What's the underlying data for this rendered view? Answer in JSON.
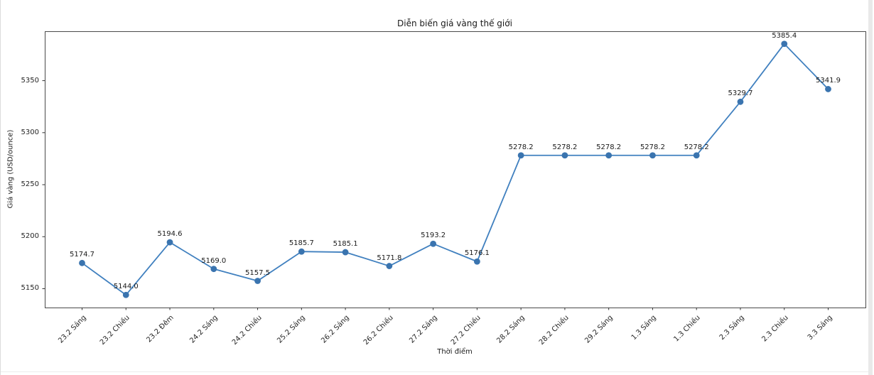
{
  "figure": {
    "title": "Diễn biến giá vàng thế giới",
    "xlabel": "Thời điểm",
    "ylabel": "Giá vàng (USD/ounce)"
  },
  "chart_data": {
    "type": "line",
    "title": "Diễn biến giá vàng thế giới",
    "xlabel": "Thời điểm",
    "ylabel": "Giá vàng (USD/ounce)",
    "categories": [
      "23.2 Sáng",
      "23.2 Chiều",
      "23.2 Đêm",
      "24.2 Sáng",
      "24.2 Chiều",
      "25.2 Sáng",
      "26.2 Sáng",
      "26.2 Chiều",
      "27.2 Sáng",
      "27.2 Chiều",
      "28.2 Sáng",
      "28.2 Chiều",
      "29.2 Sáng",
      "1.3 Sáng",
      "1.3 Chiều",
      "2.3 Sáng",
      "2.3 Chiều",
      "3.3 Sáng"
    ],
    "values": [
      5174.7,
      5144.0,
      5194.6,
      5169.0,
      5157.5,
      5185.7,
      5185.1,
      5171.8,
      5193.2,
      5176.1,
      5278.2,
      5278.2,
      5278.2,
      5278.2,
      5278.2,
      5329.7,
      5385.4,
      5341.9
    ],
    "point_labels": [
      "5174.7",
      "5144.0",
      "5194.6",
      "5169.0",
      "5157.5",
      "5185.7",
      "5185.1",
      "5171.8",
      "5193.2",
      "5176.1",
      "5278.2",
      "5278.2",
      "5278.2",
      "5278.2",
      "5278.2",
      "5329.7",
      "5385.4",
      "5341.9"
    ],
    "yticks": [
      5150,
      5200,
      5250,
      5300,
      5350
    ],
    "ylim": [
      5131.9,
      5397.5
    ],
    "xlim": [
      -0.85,
      17.85
    ],
    "grid": false,
    "legend": null,
    "x_tick_rotation_deg": 45,
    "colors": {
      "line": "#4080bf",
      "marker": "#3a74af",
      "spine": "#4a4a4a",
      "tick": "#333333",
      "text": "#1a1a1a",
      "background": "#ffffff"
    }
  }
}
